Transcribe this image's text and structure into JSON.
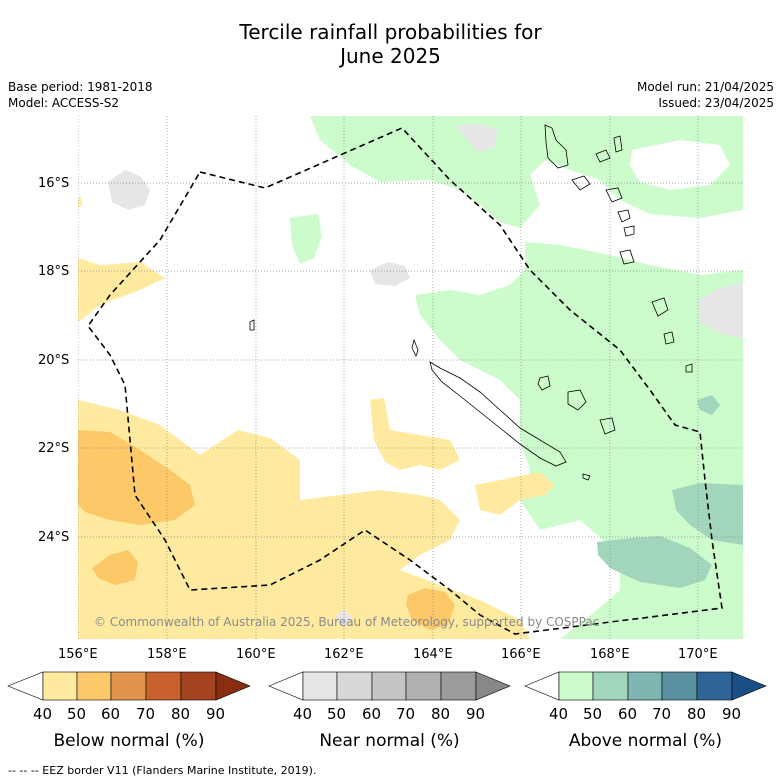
{
  "title": {
    "line1": "Tercile rainfall probabilities for",
    "line2": "June 2025"
  },
  "meta": {
    "base_period": "Base period: 1981-2018",
    "model": "Model: ACCESS-S2",
    "model_run": "Model run: 21/04/2025",
    "issued": "Issued: 23/04/2025"
  },
  "map": {
    "lat_labels": [
      "16°S",
      "18°S",
      "20°S",
      "22°S",
      "24°S"
    ],
    "lon_labels": [
      "156°E",
      "158°E",
      "160°E",
      "162°E",
      "164°E",
      "166°E",
      "168°E",
      "170°E"
    ],
    "copyright": "© Commonwealth of Australia 2025, Bureau of Meteorology, supported by COSPPac"
  },
  "colorbars": [
    {
      "label": "Below normal (%)",
      "ticks": [
        "40",
        "50",
        "60",
        "70",
        "80",
        "90"
      ],
      "colors": [
        "#ffffff",
        "#ffeaa0",
        "#fdc867",
        "#e2944a",
        "#c9612f",
        "#a5421f",
        "#8a2e12"
      ]
    },
    {
      "label": "Near normal (%)",
      "ticks": [
        "40",
        "50",
        "60",
        "70",
        "80",
        "90"
      ],
      "colors": [
        "#ffffff",
        "#e6e6e6",
        "#d8d8d8",
        "#c4c4c4",
        "#b0b0b0",
        "#9c9c9c",
        "#888888"
      ]
    },
    {
      "label": "Above normal (%)",
      "ticks": [
        "40",
        "50",
        "60",
        "70",
        "80",
        "90"
      ],
      "colors": [
        "#ffffff",
        "#ccfccc",
        "#a2d6bc",
        "#7fb6b1",
        "#5a91a0",
        "#2f6596",
        "#1a4f86"
      ]
    }
  ],
  "footer": "--  --  -- EEZ border V11 (Flanders Marine Institute, 2019)."
}
